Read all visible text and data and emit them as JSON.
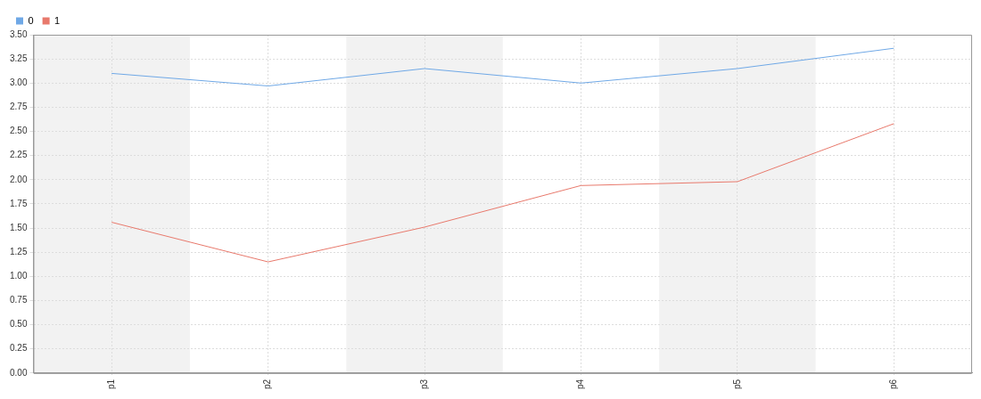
{
  "chart_data": {
    "type": "line",
    "categories": [
      "p1",
      "p2",
      "p3",
      "p4",
      "p5",
      "p6"
    ],
    "series": [
      {
        "name": "0",
        "color": "#6fa8e6",
        "values": [
          3.1,
          2.97,
          3.15,
          3.0,
          3.15,
          3.36
        ]
      },
      {
        "name": "1",
        "color": "#e8796c",
        "values": [
          1.56,
          1.15,
          1.51,
          1.94,
          1.98,
          2.58
        ]
      }
    ],
    "ylim": [
      0,
      3.5
    ],
    "yticks": [
      {
        "value": 0,
        "label": "0.00"
      },
      {
        "value": 0.25,
        "label": "0.25"
      },
      {
        "value": 0.5,
        "label": "0.50"
      },
      {
        "value": 0.75,
        "label": "0.75"
      },
      {
        "value": 1,
        "label": "1.00"
      },
      {
        "value": 1.25,
        "label": "1.25"
      },
      {
        "value": 1.5,
        "label": "1.50"
      },
      {
        "value": 1.75,
        "label": "1.75"
      },
      {
        "value": 2,
        "label": "2.00"
      },
      {
        "value": 2.25,
        "label": "2.25"
      },
      {
        "value": 2.5,
        "label": "2.50"
      },
      {
        "value": 2.75,
        "label": "2.75"
      },
      {
        "value": 3,
        "label": "3.00"
      },
      {
        "value": 3.25,
        "label": "3.25"
      },
      {
        "value": 3.5,
        "label": "3.50"
      }
    ],
    "bands": [
      {
        "axis": "x",
        "from": "p1",
        "to": "p1",
        "color": "#f2f2f2"
      },
      {
        "axis": "x",
        "from": "p3",
        "to": "p3",
        "color": "#f2f2f2"
      },
      {
        "axis": "x",
        "from": "p5",
        "to": "p5",
        "color": "#f2f2f2"
      }
    ],
    "grid": true,
    "legend": "top left",
    "marker": "none",
    "line_style": "solid"
  }
}
